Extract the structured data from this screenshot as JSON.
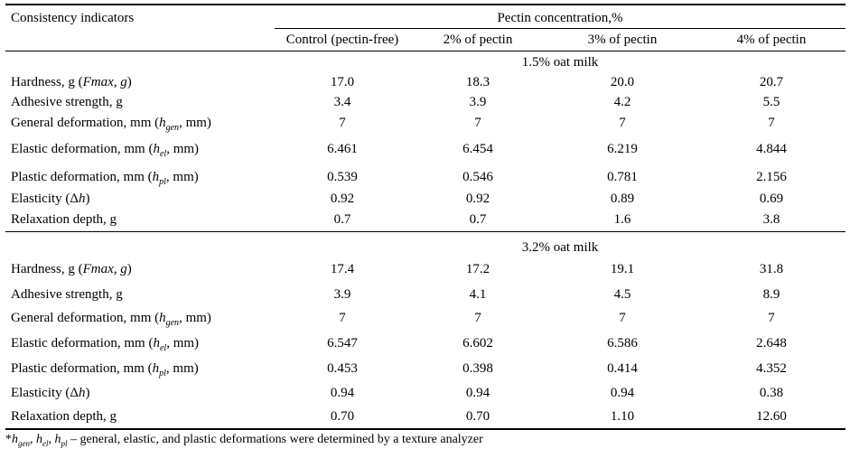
{
  "table": {
    "first_header": "Consistency indicators",
    "group_header": "Pectin concentration,%",
    "columns": [
      "Control (pectin-free)",
      "2% of pectin",
      "3% of pectin",
      "4% of pectin"
    ],
    "sections": [
      {
        "title": "1.5% oat milk",
        "rows": [
          {
            "label": {
              "pre": "Hardness, g (",
              "it": "Fmax, g",
              "post": ")"
            },
            "values": [
              "17.0",
              "18.3",
              "20.0",
              "20.7"
            ]
          },
          {
            "label": {
              "pre": "Adhesive strength, g"
            },
            "values": [
              "3.4",
              "3.9",
              "4.2",
              "5.5"
            ]
          },
          {
            "label": {
              "pre": "General deformation, mm (",
              "it": "h",
              "sub": "gen",
              "post": ", mm)"
            },
            "values": [
              "7",
              "7",
              "7",
              "7"
            ]
          },
          {
            "label": {
              "pre": "Elastic deformation, mm (",
              "it": "h",
              "sub": "el",
              "post": ", mm)"
            },
            "values": [
              "6.461",
              "6.454",
              "6.219",
              "4.844"
            ]
          },
          {
            "label": {
              "pre": "Plastic deformation, mm (",
              "it": "h",
              "sub": "pl",
              "post": ", mm)"
            },
            "values": [
              "0.539",
              "0.546",
              "0.781",
              "2.156"
            ]
          },
          {
            "label": {
              "pre": "Elasticity (Δ",
              "it": "h",
              "post": ")"
            },
            "values": [
              "0.92",
              "0.92",
              "0.89",
              "0.69"
            ]
          },
          {
            "label": {
              "pre": "Relaxation depth, g"
            },
            "values": [
              "0.7",
              "0.7",
              "1.6",
              "3.8"
            ]
          }
        ]
      },
      {
        "title": "3.2% oat milk",
        "rows": [
          {
            "label": {
              "pre": "Hardness, g (",
              "it": "Fmax, g",
              "post": ")"
            },
            "values": [
              "17.4",
              "17.2",
              "19.1",
              "31.8"
            ]
          },
          {
            "label": {
              "pre": "Adhesive strength, g"
            },
            "values": [
              "3.9",
              "4.1",
              "4.5",
              "8.9"
            ]
          },
          {
            "label": {
              "pre": "General deformation, mm (",
              "it": "h",
              "sub": "gen",
              "post": ", mm)"
            },
            "values": [
              "7",
              "7",
              "7",
              "7"
            ]
          },
          {
            "label": {
              "pre": "Elastic deformation, mm (",
              "it": "h",
              "sub": "el",
              "post": ", mm)"
            },
            "values": [
              "6.547",
              "6.602",
              "6.586",
              "2.648"
            ]
          },
          {
            "label": {
              "pre": "Plastic deformation, mm (",
              "it": "h",
              "sub": "pl",
              "post": ", mm)"
            },
            "values": [
              "0.453",
              "0.398",
              "0.414",
              "4.352"
            ]
          },
          {
            "label": {
              "pre": "Elasticity (Δ",
              "it": "h",
              "post": ")"
            },
            "values": [
              "0.94",
              "0.94",
              "0.94",
              "0.38"
            ]
          },
          {
            "label": {
              "pre": "Relaxation depth, g"
            },
            "values": [
              "0.70",
              "0.70",
              "1.10",
              "12.60"
            ]
          }
        ]
      }
    ],
    "footnote": {
      "star": "*",
      "h1": "h",
      "s1": "gen",
      "sep1": ", ",
      "h2": "h",
      "s2": "el",
      "sep2": ",  ",
      "h3": "h",
      "s3": "pl",
      "text": " – general, elastic, and plastic deformations were determined by a texture analyzer"
    }
  }
}
